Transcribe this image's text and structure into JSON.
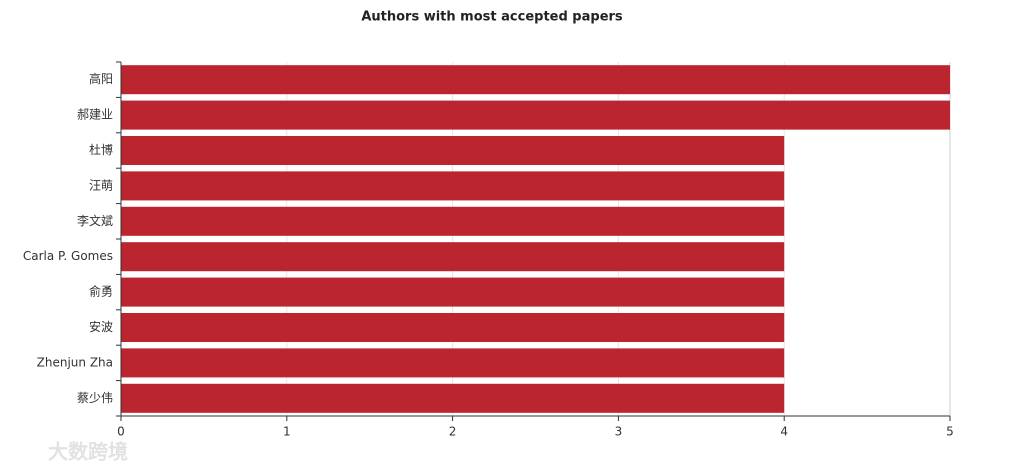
{
  "chart_data": {
    "type": "bar",
    "orientation": "horizontal",
    "title": "Authors with most accepted papers",
    "categories": [
      "高阳",
      "郝建业",
      "杜博",
      "汪萌",
      "李文斌",
      "Carla P. Gomes",
      "俞勇",
      "安波",
      "Zhenjun Zha",
      "蔡少伟"
    ],
    "values": [
      5,
      5,
      4,
      4,
      4,
      4,
      4,
      4,
      4,
      4
    ],
    "color": "#bb2530",
    "xlim": [
      0,
      5
    ],
    "xticks": [
      0,
      1,
      2,
      3,
      4,
      5
    ],
    "grid": true
  },
  "watermark": "大数跨境"
}
